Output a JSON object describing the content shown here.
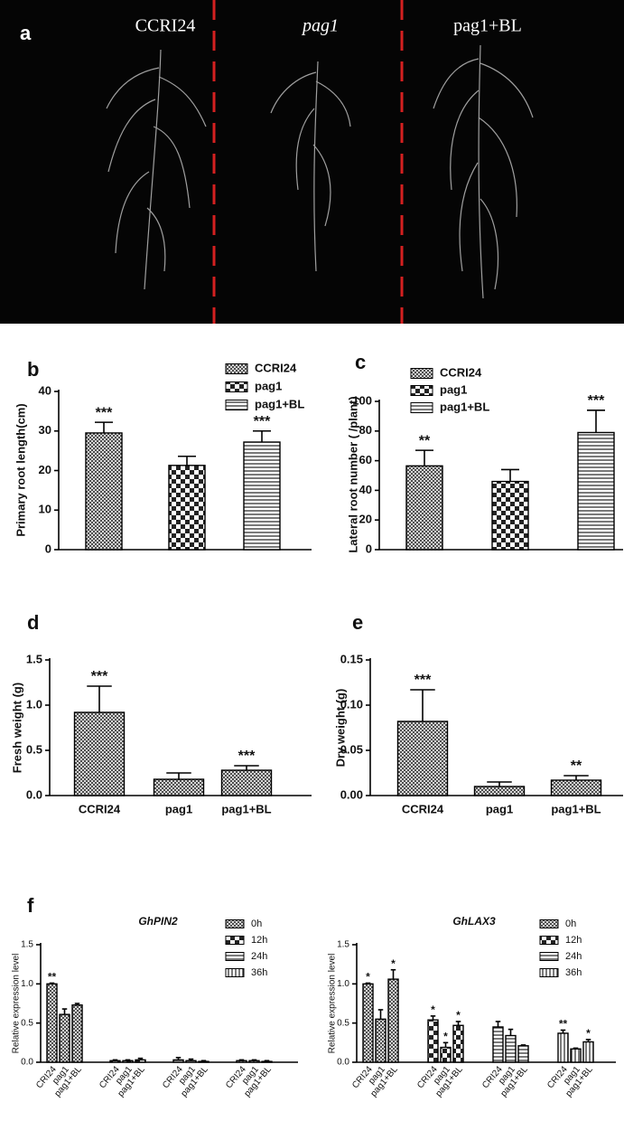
{
  "image": {
    "label": "a",
    "captions": [
      "CCRI24",
      "pag1",
      "pag1+BL"
    ]
  },
  "chart_data": [
    {
      "type": "bar",
      "panel_label": "b",
      "ylabel": "Primary root length(cm)",
      "ylim": [
        0,
        40
      ],
      "yticks": [
        0,
        10,
        20,
        30,
        40
      ],
      "series": [
        {
          "name": "CCRI24",
          "values": [
            29.5
          ],
          "errors": [
            2.7
          ],
          "annotations": [
            "***"
          ]
        },
        {
          "name": "pag1",
          "values": [
            21.3
          ],
          "errors": [
            2.3
          ],
          "annotations": [
            null
          ]
        },
        {
          "name": "pag1+BL",
          "values": [
            27.2
          ],
          "errors": [
            2.8
          ],
          "annotations": [
            "***"
          ]
        }
      ]
    },
    {
      "type": "bar",
      "panel_label": "c",
      "ylabel": "Lateral root number ( /plant)",
      "ylim": [
        0,
        100
      ],
      "yticks": [
        0,
        20,
        40,
        60,
        80,
        100
      ],
      "series": [
        {
          "name": "CCRI24",
          "values": [
            56.5
          ],
          "errors": [
            10.5
          ],
          "annotations": [
            "**"
          ]
        },
        {
          "name": "pag1",
          "values": [
            46
          ],
          "errors": [
            8
          ],
          "annotations": [
            null
          ]
        },
        {
          "name": "pag1+BL",
          "values": [
            79
          ],
          "errors": [
            15
          ],
          "annotations": [
            "***"
          ]
        }
      ]
    },
    {
      "type": "bar",
      "panel_label": "d",
      "ylabel": "Fresh weight (g)",
      "ylim": [
        0,
        1.5
      ],
      "yticks": [
        {
          "value": 0,
          "label": "0.0"
        },
        0.5,
        {
          "value": 1,
          "label": "1.0"
        },
        1.5
      ],
      "categories": [
        "CCRI24",
        "pag1",
        "pag1+BL"
      ],
      "series": [
        {
          "values": [
            0.92,
            0.18,
            0.28
          ],
          "errors": [
            0.29,
            0.07,
            0.05
          ],
          "annotations": [
            "***",
            null,
            "***"
          ]
        }
      ]
    },
    {
      "type": "bar",
      "panel_label": "e",
      "ylabel": "Dry weight (g)",
      "ylim": [
        0,
        0.15
      ],
      "yticks": [
        {
          "value": 0,
          "label": "0.00"
        },
        0.05,
        {
          "value": 0.1,
          "label": "0.10"
        },
        0.15
      ],
      "categories": [
        "CCRI24",
        "pag1",
        "pag1+BL"
      ],
      "series": [
        {
          "values": [
            0.082,
            0.01,
            0.017
          ],
          "errors": [
            0.035,
            0.005,
            0.005
          ],
          "annotations": [
            "***",
            null,
            "**"
          ]
        }
      ]
    },
    {
      "type": "grouped-bar",
      "panel_label": "f",
      "title": "GhPIN2",
      "ylabel": "Relative expression level",
      "ylim": [
        0,
        1.5
      ],
      "yticks": [
        {
          "value": 0,
          "label": "0.0"
        },
        0.5,
        {
          "value": 1,
          "label": "1.0"
        },
        1.5
      ],
      "categories": [
        "CRI24",
        "pag1",
        "pag1+BL"
      ],
      "series": [
        {
          "name": "0h",
          "values": [
            1.0,
            0.61,
            0.73
          ],
          "errors": [
            0.01,
            0.07,
            0.02
          ],
          "annotations": [
            "**",
            null,
            null
          ]
        },
        {
          "name": "12h",
          "values": [
            0.02,
            0.02,
            0.03
          ],
          "errors": [
            0.01,
            0.01,
            0.02
          ],
          "annotations": [
            null,
            null,
            null
          ]
        },
        {
          "name": "24h",
          "values": [
            0.03,
            0.02,
            0.01
          ],
          "errors": [
            0.03,
            0.02,
            0.01
          ],
          "annotations": [
            null,
            null,
            null
          ]
        },
        {
          "name": "36h",
          "values": [
            0.02,
            0.02,
            0.01
          ],
          "errors": [
            0.01,
            0.01,
            0.01
          ],
          "annotations": [
            null,
            null,
            null
          ]
        }
      ]
    },
    {
      "type": "grouped-bar",
      "title": "GhLAX3",
      "ylabel": "Relative expression level",
      "ylim": [
        0,
        1.5
      ],
      "yticks": [
        {
          "value": 0,
          "label": "0.0"
        },
        0.5,
        {
          "value": 1,
          "label": "1.0"
        },
        1.5
      ],
      "categories": [
        "CRI24",
        "pag1",
        "pag1+BL"
      ],
      "series": [
        {
          "name": "0h",
          "values": [
            1.0,
            0.55,
            1.06
          ],
          "errors": [
            0.01,
            0.12,
            0.12
          ],
          "annotations": [
            "*",
            null,
            "*"
          ]
        },
        {
          "name": "12h",
          "values": [
            0.54,
            0.19,
            0.47
          ],
          "errors": [
            0.05,
            0.06,
            0.05
          ],
          "annotations": [
            "*",
            "*",
            "*"
          ]
        },
        {
          "name": "24h",
          "values": [
            0.45,
            0.34,
            0.21
          ],
          "errors": [
            0.07,
            0.08,
            0.01
          ],
          "annotations": [
            null,
            null,
            null
          ]
        },
        {
          "name": "36h",
          "values": [
            0.37,
            0.17,
            0.26
          ],
          "errors": [
            0.04,
            0.01,
            0.03
          ],
          "annotations": [
            "**",
            null,
            "*"
          ]
        }
      ]
    }
  ]
}
